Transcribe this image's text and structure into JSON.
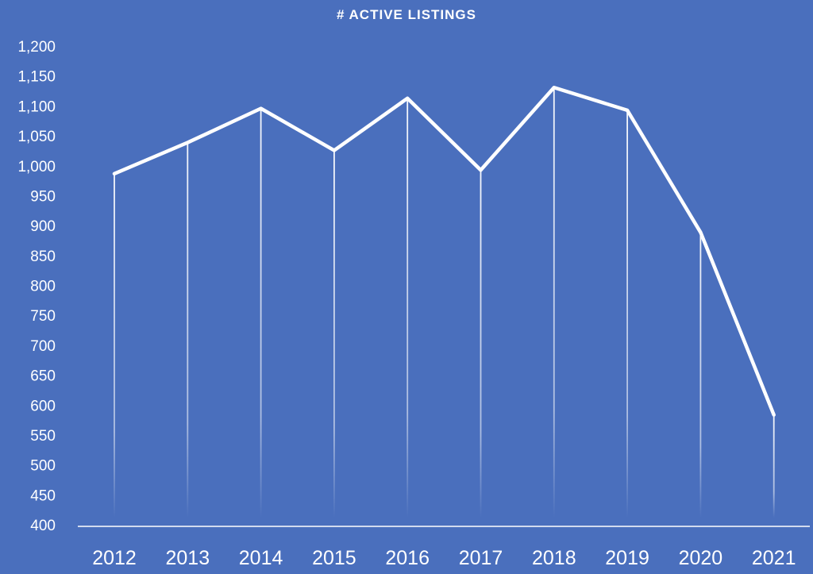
{
  "chart_data": {
    "type": "line",
    "title": "# ACTIVE LISTINGS",
    "xlabel": "",
    "ylabel": "",
    "categories": [
      "2012",
      "2013",
      "2014",
      "2015",
      "2016",
      "2017",
      "2018",
      "2019",
      "2020",
      "2021"
    ],
    "series": [
      {
        "values": [
          988,
          1040,
          1097,
          1027,
          1114,
          994,
          1132,
          1094,
          890,
          585
        ]
      }
    ],
    "ylim": [
      400,
      1200
    ],
    "yticks": [
      400,
      450,
      500,
      550,
      600,
      650,
      700,
      750,
      800,
      850,
      900,
      950,
      1000,
      1050,
      1100,
      1150,
      1200
    ],
    "ytick_labels": [
      "400",
      "450",
      "500",
      "550",
      "600",
      "650",
      "700",
      "750",
      "800",
      "850",
      "900",
      "950",
      "1,000",
      "1,050",
      "1,100",
      "1,150",
      "1,200"
    ],
    "grid": false,
    "legend": "none",
    "drop_lines": true,
    "colors": {
      "background": "#4a6fbd",
      "line": "#ffffff",
      "text": "#ffffff"
    }
  }
}
